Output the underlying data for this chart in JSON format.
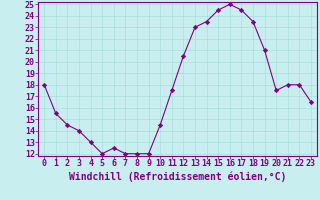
{
  "x": [
    0,
    1,
    2,
    3,
    4,
    5,
    6,
    7,
    8,
    9,
    10,
    11,
    12,
    13,
    14,
    15,
    16,
    17,
    18,
    19,
    20,
    21,
    22,
    23
  ],
  "y": [
    18,
    15.5,
    14.5,
    14,
    13,
    12,
    12.5,
    12,
    12,
    12,
    14.5,
    17.5,
    20.5,
    23,
    23.5,
    24.5,
    25,
    24.5,
    23.5,
    21,
    17.5,
    18,
    18,
    16.5
  ],
  "line_color": "#800080",
  "marker": "D",
  "marker_size": 2.2,
  "bg_color": "#c8eef0",
  "grid_color": "#aadddd",
  "xlabel": "Windchill (Refroidissement éolien,°C)",
  "ylabel": "",
  "ylim": [
    12,
    25
  ],
  "xlim": [
    -0.5,
    23.5
  ],
  "yticks": [
    12,
    13,
    14,
    15,
    16,
    17,
    18,
    19,
    20,
    21,
    22,
    23,
    24,
    25
  ],
  "xticks": [
    0,
    1,
    2,
    3,
    4,
    5,
    6,
    7,
    8,
    9,
    10,
    11,
    12,
    13,
    14,
    15,
    16,
    17,
    18,
    19,
    20,
    21,
    22,
    23
  ],
  "axis_label_color": "#800080",
  "tick_color": "#800080",
  "xlabel_fontsize": 7,
  "tick_fontsize": 6,
  "spine_color": "#800080"
}
